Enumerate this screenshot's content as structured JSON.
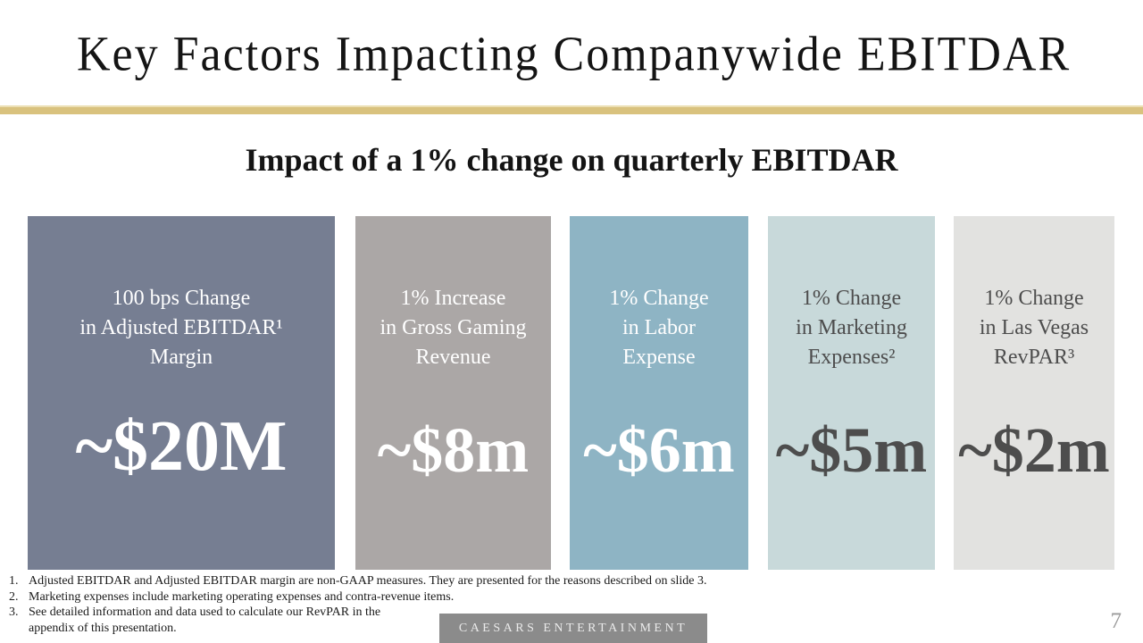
{
  "slide": {
    "title": "Key Factors Impacting Companywide EBITDAR",
    "subtitle": "Impact of a 1% change on quarterly EBITDAR",
    "footer_brand": "CAESARS ENTERTAINMENT",
    "page_number": "7"
  },
  "colors": {
    "divider_gold": "#d9c27e",
    "brand_bar_bg": "#8b8b8b",
    "brand_bar_text": "#eaeaea",
    "page_number_text": "#9b9b9b"
  },
  "boxes": [
    {
      "name": "adjusted-ebitdar-margin",
      "lines": [
        "100 bps Change",
        "in Adjusted EBITDAR¹",
        "Margin"
      ],
      "value": "~$20M",
      "bg": "#767e92",
      "text_color": "#ffffff"
    },
    {
      "name": "gross-gaming-revenue",
      "lines": [
        "1% Increase",
        "in Gross Gaming",
        "Revenue"
      ],
      "value": "~$8m",
      "bg": "#aba7a6",
      "text_color": "#ffffff"
    },
    {
      "name": "labor-expense",
      "lines": [
        "1% Change",
        "in Labor",
        "Expense"
      ],
      "value": "~$6m",
      "bg": "#8eb4c4",
      "text_color": "#ffffff"
    },
    {
      "name": "marketing-expenses",
      "lines": [
        "1% Change",
        "in Marketing",
        "Expenses²"
      ],
      "value": "~$5m",
      "bg": "#c8d9da",
      "text_color": "#4d4d4d"
    },
    {
      "name": "las-vegas-revpar",
      "lines": [
        "1% Change",
        "in Las Vegas",
        "RevPAR³"
      ],
      "value": "~$2m",
      "bg": "#e2e2e0",
      "text_color": "#4d4d4d"
    }
  ],
  "footnotes": [
    {
      "num": "1.",
      "text": "Adjusted EBITDAR and Adjusted EBITDAR margin are non-GAAP measures. They are presented for the reasons described on slide 3."
    },
    {
      "num": "2.",
      "text": "Marketing expenses include marketing operating expenses and contra-revenue items."
    },
    {
      "num": "3.",
      "text": "See detailed information and data used to calculate our RevPAR in the\nappendix of this presentation."
    }
  ]
}
